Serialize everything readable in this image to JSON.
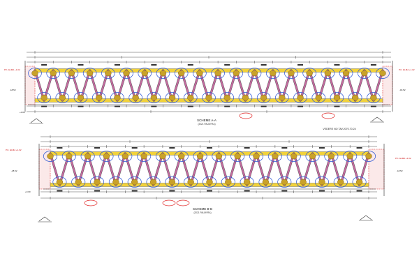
{
  "sheet": {
    "colors": {
      "chord_yellow": "#f2d23a",
      "node_gold": "#c9a12a",
      "diagonal_pink": "#c66aa0",
      "cloud_blue": "#2a55d6",
      "cloud_red": "#e02222",
      "dimension": "#222222",
      "hatch_red": "#dd2222"
    },
    "views": [
      {
        "id": "A-A",
        "title": "SCHEME A-A",
        "subtitle": "(2021 PALMYRA)",
        "bays": 19,
        "side_labels": [
          "P.K. ELMA +1.02",
          "P.K. ELMA +1.02"
        ],
        "level_labels": [
          "-18.52",
          "-18.52",
          "+0.00"
        ],
        "note": "VEDERE NO TAV.2070.70.24"
      },
      {
        "id": "B-B",
        "title": "SCHEME B-B",
        "subtitle": "(2021 PALMYRA)",
        "bays": 17,
        "side_labels": [
          "P.K. ELMA +1.02",
          "P.K. ELMA +1.02"
        ],
        "level_labels": [
          "-18.52",
          "-18.52",
          "+0.00"
        ],
        "note": ""
      }
    ]
  }
}
